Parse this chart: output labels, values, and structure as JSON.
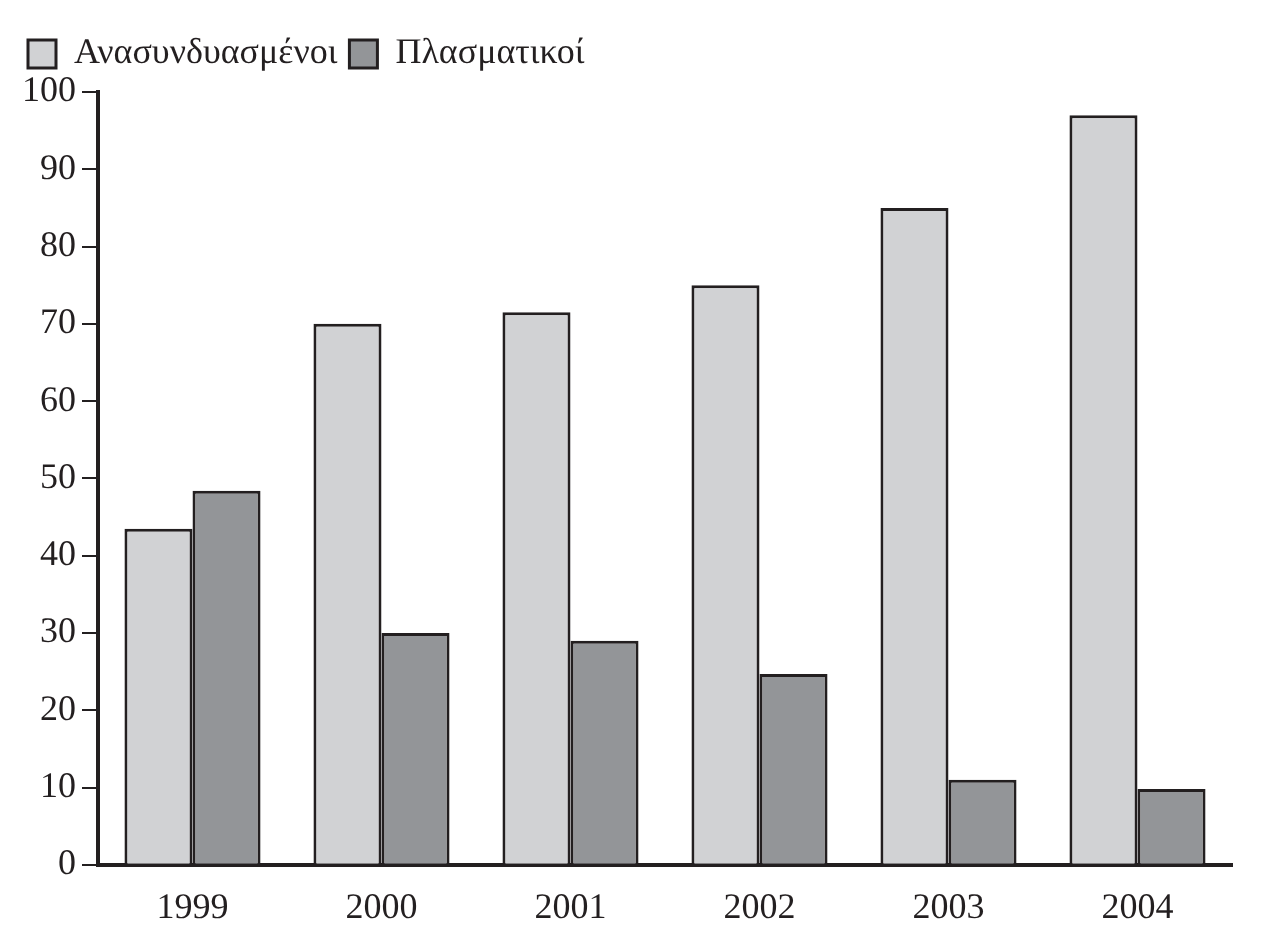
{
  "chart_data": {
    "type": "bar",
    "categories": [
      "1999",
      "2000",
      "2001",
      "2002",
      "2003",
      "2004"
    ],
    "series": [
      {
        "name": "Ανασυνδυασμένοι",
        "color": "#d1d2d4",
        "values": [
          43.5,
          70,
          71.5,
          75,
          85,
          97
        ]
      },
      {
        "name": "Πλασματικοί",
        "color": "#939598",
        "values": [
          48.4,
          30,
          29,
          24.7,
          11,
          9.8
        ]
      }
    ],
    "ylim": [
      0,
      100
    ],
    "yticks": [
      0,
      10,
      20,
      30,
      40,
      50,
      60,
      70,
      80,
      90,
      100
    ],
    "grid": false,
    "legend": "top left"
  }
}
